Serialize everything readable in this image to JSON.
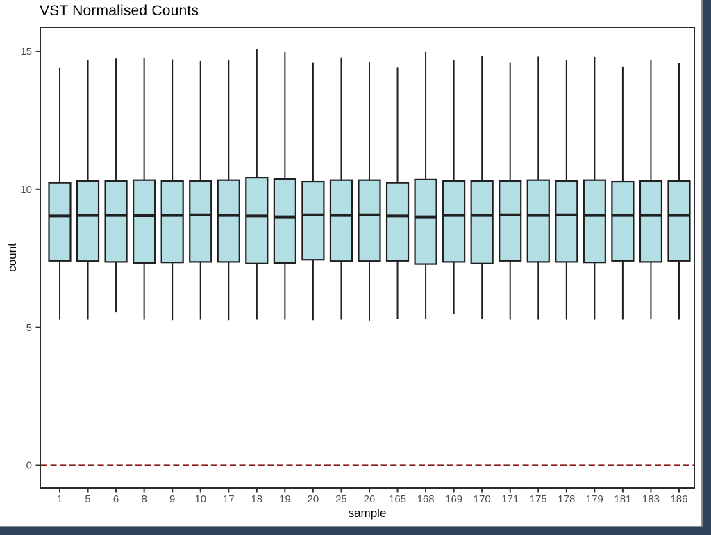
{
  "window": {
    "edge_color": "#2E4357",
    "edge_separator_color": "#8a8a8a",
    "background": "#ffffff"
  },
  "chart_data": {
    "type": "boxplot",
    "title": "VST Normalised Counts",
    "xlabel": "sample",
    "ylabel": "count",
    "yticks": [
      0,
      5,
      10,
      15
    ],
    "ylim": [
      -0.82,
      15.86
    ],
    "grid": false,
    "legend": "none",
    "reference_line": {
      "y": 0,
      "color": "#8B1A1A",
      "style": "dashed"
    },
    "style": {
      "box_fill": "#B3DFE4",
      "box_border": "#1f1f1f",
      "whisker_color": "#1f1f1f",
      "median_color": "#1f1f1f",
      "panel_border_color": "#2b2b2b",
      "tick_mark_color": "#333333",
      "tick_label_color": "#4d4d4d",
      "axis_title_color": "#000000",
      "title_color": "#000000"
    },
    "boxes": [
      {
        "sample": "1",
        "low": 5.28,
        "q1": 7.41,
        "median": 9.03,
        "q3": 10.23,
        "high": 14.4
      },
      {
        "sample": "5",
        "low": 5.28,
        "q1": 7.4,
        "median": 9.05,
        "q3": 10.3,
        "high": 14.68
      },
      {
        "sample": "6",
        "low": 5.54,
        "q1": 7.37,
        "median": 9.05,
        "q3": 10.3,
        "high": 14.74
      },
      {
        "sample": "8",
        "low": 5.28,
        "q1": 7.33,
        "median": 9.04,
        "q3": 10.33,
        "high": 14.76
      },
      {
        "sample": "9",
        "low": 5.26,
        "q1": 7.35,
        "median": 9.05,
        "q3": 10.3,
        "high": 14.71
      },
      {
        "sample": "10",
        "low": 5.28,
        "q1": 7.37,
        "median": 9.07,
        "q3": 10.3,
        "high": 14.65
      },
      {
        "sample": "17",
        "low": 5.26,
        "q1": 7.37,
        "median": 9.05,
        "q3": 10.33,
        "high": 14.7
      },
      {
        "sample": "18",
        "low": 5.28,
        "q1": 7.31,
        "median": 9.03,
        "q3": 10.42,
        "high": 15.08
      },
      {
        "sample": "19",
        "low": 5.28,
        "q1": 7.33,
        "median": 9.0,
        "q3": 10.37,
        "high": 14.97
      },
      {
        "sample": "20",
        "low": 5.26,
        "q1": 7.45,
        "median": 9.07,
        "q3": 10.27,
        "high": 14.58
      },
      {
        "sample": "25",
        "low": 5.28,
        "q1": 7.4,
        "median": 9.05,
        "q3": 10.33,
        "high": 14.78
      },
      {
        "sample": "26",
        "low": 5.25,
        "q1": 7.4,
        "median": 9.07,
        "q3": 10.33,
        "high": 14.61
      },
      {
        "sample": "165",
        "low": 5.3,
        "q1": 7.41,
        "median": 9.03,
        "q3": 10.23,
        "high": 14.41
      },
      {
        "sample": "168",
        "low": 5.3,
        "q1": 7.29,
        "median": 9.0,
        "q3": 10.35,
        "high": 14.98
      },
      {
        "sample": "169",
        "low": 5.49,
        "q1": 7.37,
        "median": 9.05,
        "q3": 10.3,
        "high": 14.68
      },
      {
        "sample": "170",
        "low": 5.3,
        "q1": 7.31,
        "median": 9.05,
        "q3": 10.3,
        "high": 14.84
      },
      {
        "sample": "171",
        "low": 5.28,
        "q1": 7.41,
        "median": 9.07,
        "q3": 10.3,
        "high": 14.58
      },
      {
        "sample": "175",
        "low": 5.28,
        "q1": 7.37,
        "median": 9.05,
        "q3": 10.33,
        "high": 14.81
      },
      {
        "sample": "178",
        "low": 5.28,
        "q1": 7.37,
        "median": 9.07,
        "q3": 10.3,
        "high": 14.67
      },
      {
        "sample": "179",
        "low": 5.28,
        "q1": 7.35,
        "median": 9.05,
        "q3": 10.33,
        "high": 14.8
      },
      {
        "sample": "181",
        "low": 5.28,
        "q1": 7.41,
        "median": 9.05,
        "q3": 10.27,
        "high": 14.45
      },
      {
        "sample": "183",
        "low": 5.3,
        "q1": 7.37,
        "median": 9.05,
        "q3": 10.3,
        "high": 14.68
      },
      {
        "sample": "186",
        "low": 5.28,
        "q1": 7.41,
        "median": 9.05,
        "q3": 10.3,
        "high": 14.57
      }
    ]
  }
}
